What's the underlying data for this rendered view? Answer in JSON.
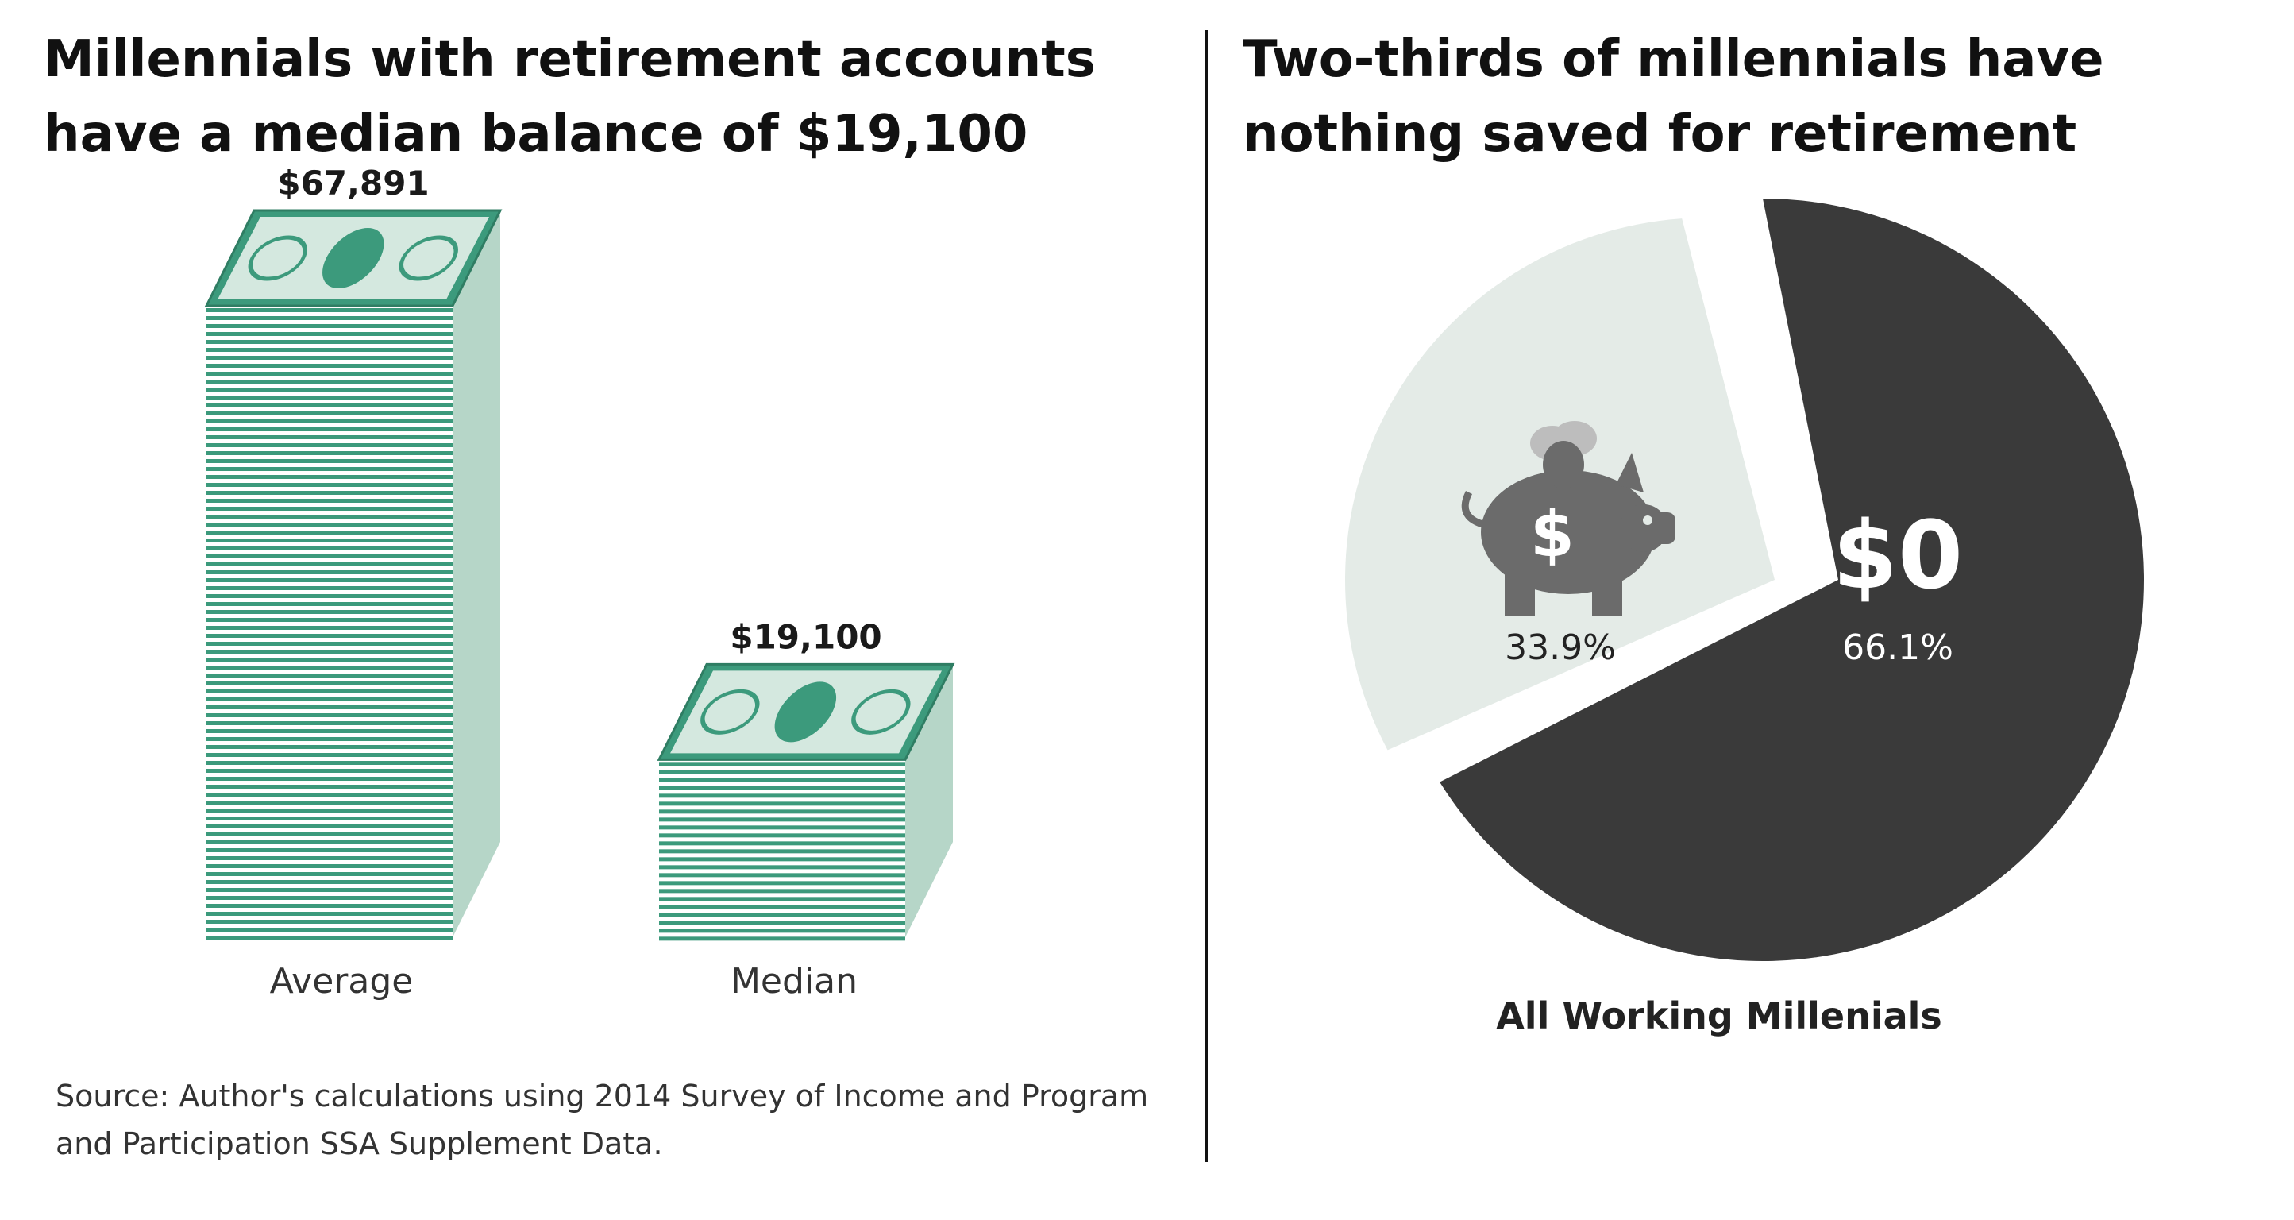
{
  "left": {
    "title": "Millennials with retirement accounts have a median balance of $19,100",
    "source": "Source: Author's calculations using 2014 Survey of Income and Program and Participation SSA Supplement Data."
  },
  "right": {
    "title": "Two-thirds of millennials have nothing saved for retirement"
  },
  "colors": {
    "money_green": "#3c9a7c",
    "money_light": "#d4e8df",
    "money_side": "#b6d6c8",
    "pie_dark": "#3a3a3a",
    "pie_light": "#e4ebe7",
    "piggy": "#6b6b6b"
  },
  "chart_data": [
    {
      "type": "bar",
      "title": "Millennials with retirement accounts have a median balance of $19,100",
      "categories": [
        "Average",
        "Median"
      ],
      "values": [
        67891,
        19100
      ],
      "value_labels": [
        "$67,891",
        "$19,100"
      ],
      "xlabel": "",
      "ylabel": "",
      "ylim": [
        0,
        67891
      ],
      "grid": false,
      "legend": "none"
    },
    {
      "type": "pie",
      "title": "Two-thirds of millennials have nothing saved for retirement",
      "category": "All Working Millenials",
      "slices": [
        {
          "label": "$",
          "value": 33.9,
          "value_label": "33.9%",
          "icon": "piggy-bank-icon"
        },
        {
          "label": "$0",
          "value": 66.1,
          "value_label": "66.1%"
        }
      ],
      "legend": "none"
    }
  ]
}
